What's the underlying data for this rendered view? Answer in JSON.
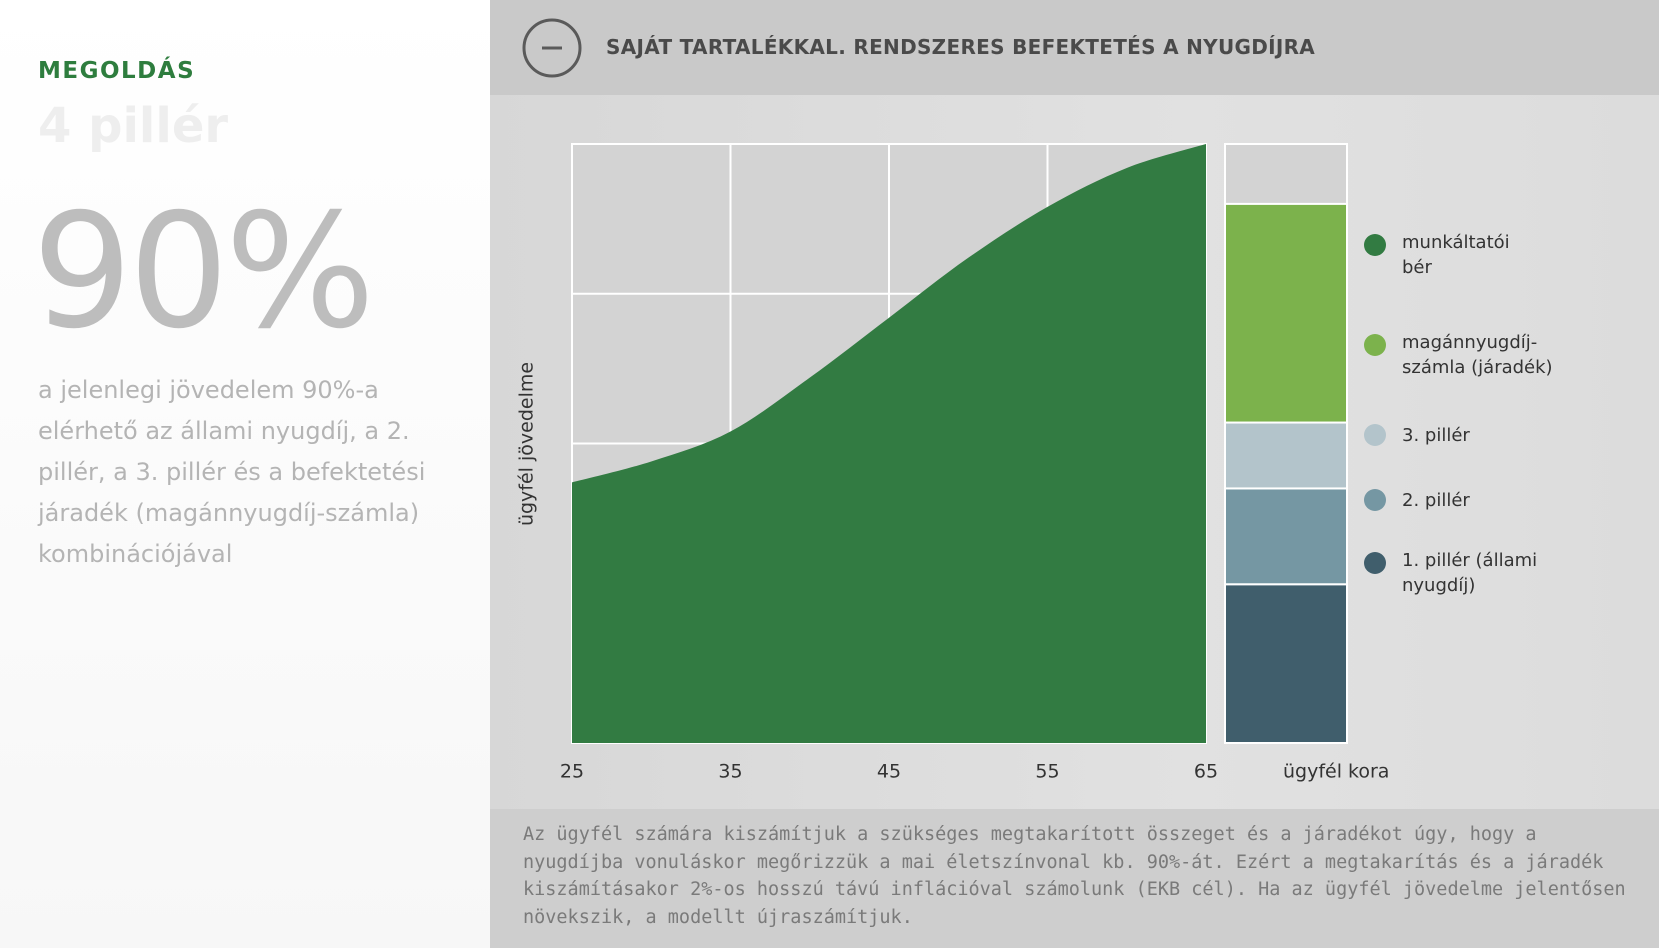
{
  "sidebar": {
    "label": "MEGOLDÁS",
    "heading": "4 pillér",
    "big_number": "90%",
    "description": "a jelenlegi jövedelem 90%-a elérhető az állami nyugdíj, a 2. pillér, a 3. pillér és a befektetési járadék (magánnyugdíj-számla) kombinációjával"
  },
  "header": {
    "title": "SAJÁT TARTALÉKKAL. RENDSZERES BEFEKTETÉS A NYUGDÍJRA"
  },
  "chart_data": {
    "type": "area",
    "y_label": "ügyfél jövedelme",
    "x_label": "ügyfél kora",
    "x": [
      25,
      30,
      35,
      40,
      45,
      50,
      55,
      60,
      65
    ],
    "xlim": [
      25,
      65
    ],
    "xticks": [
      25,
      35,
      45,
      55,
      65
    ],
    "ylim": [
      0,
      100
    ],
    "grid": true,
    "series": [
      {
        "name": "munkáltatói bér",
        "color": "#327b42",
        "values": [
          43.5,
          47,
          52,
          61,
          71,
          81,
          89.5,
          96,
          100
        ]
      }
    ],
    "bar_series": [
      {
        "name": "magánnyugdíj-számla (járadék)",
        "color": "#7cb24c",
        "value": 36.5
      },
      {
        "name": "3. pillér",
        "color": "#b3c4cb",
        "value": 11
      },
      {
        "name": "2. pillér",
        "color": "#7597a3",
        "value": 16
      },
      {
        "name": "1. pillér (állami nyugdíj)",
        "color": "#405e6c",
        "value": 26.5
      }
    ]
  },
  "footer": {
    "text": "Az ügyfél számára kiszámítjuk a szükséges megtakarított összeget és a járadékot úgy, hogy a nyugdíjba vonuláskor megőrizzük a mai életszínvonal kb. 90%-át. Ezért a megtakarítás és a járadék kiszámításakor 2%-os hosszú távú inflációval számolunk (EKB cél). Ha az ügyfél jövedelme jelentősen növekszik, a modellt újraszámítjuk."
  }
}
